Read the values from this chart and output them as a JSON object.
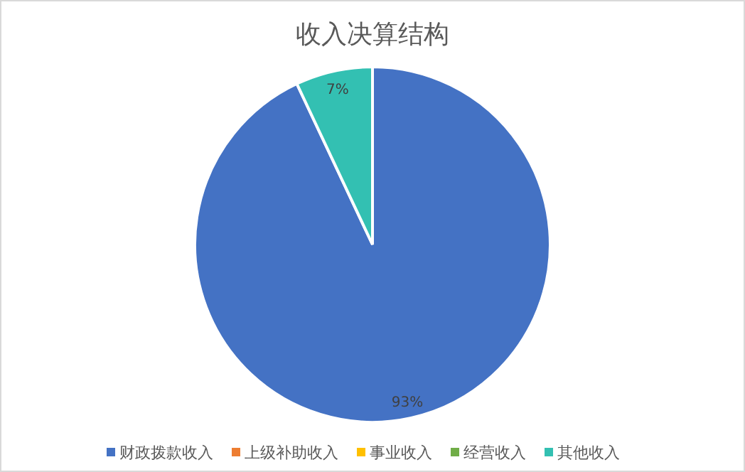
{
  "chart_data": {
    "type": "pie",
    "title": "收入决算结构",
    "categories": [
      "财政拨款收入",
      "上级补助收入",
      "事业收入",
      "经营收入",
      "其他收入"
    ],
    "values": [
      93,
      0,
      0,
      0,
      7
    ],
    "colors": [
      "#4472c4",
      "#ed7d31",
      "#ffc000",
      "#70ad47",
      "#33c0b2"
    ],
    "value_labels": [
      "93%",
      null,
      null,
      null,
      "7%"
    ],
    "legend": "bottom"
  }
}
